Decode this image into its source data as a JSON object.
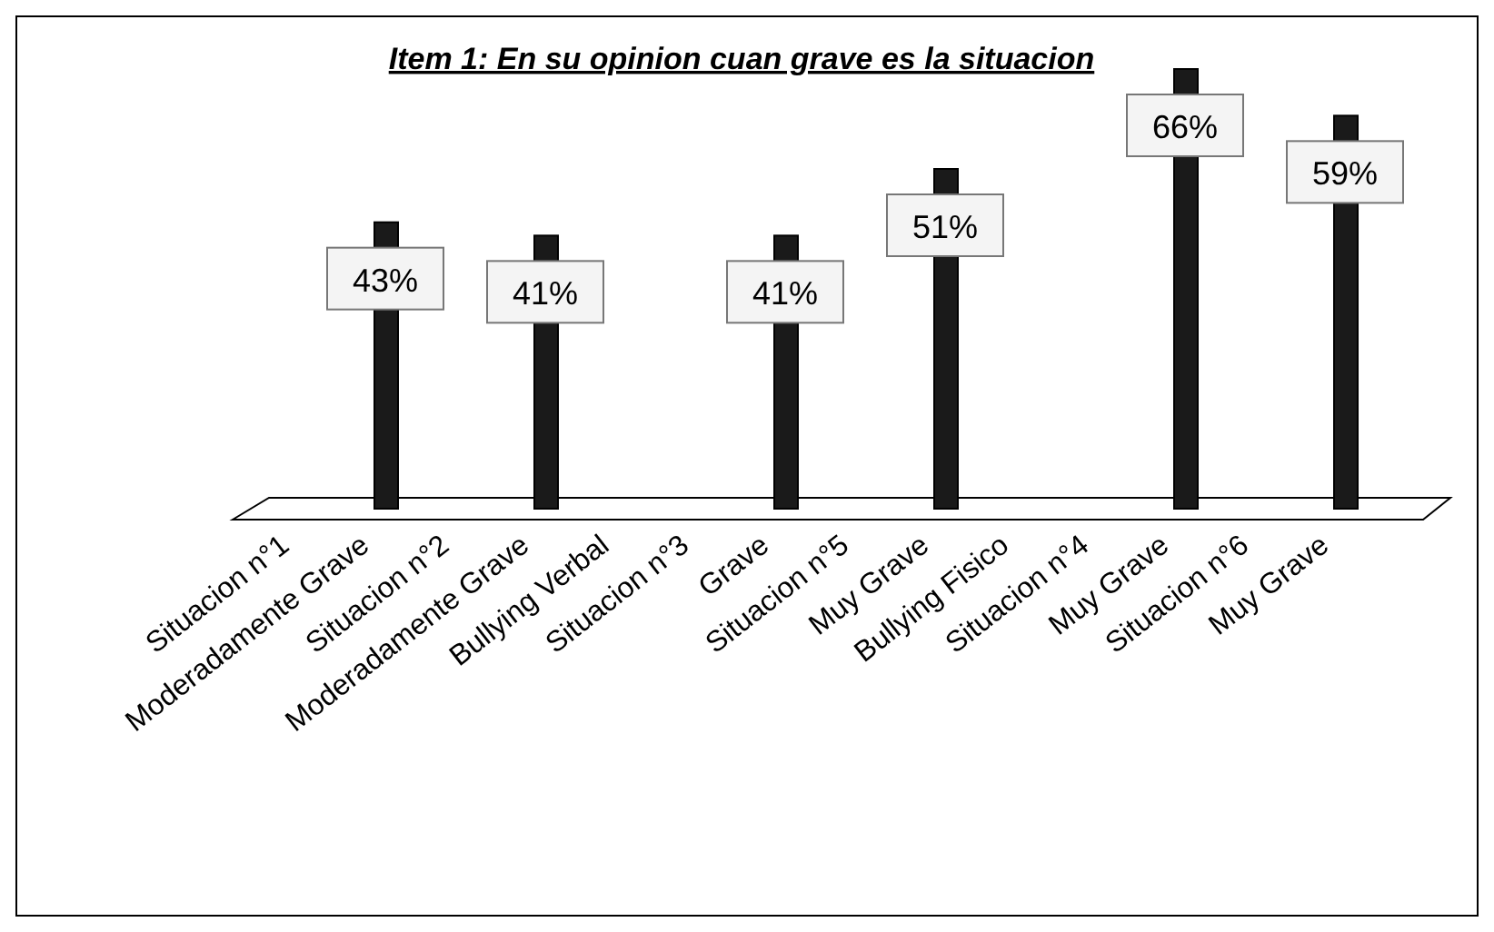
{
  "chart_data": {
    "type": "bar",
    "title": "Item 1: En su opinion cuan grave es la situacion",
    "categories": [
      "Situacion n°1",
      "Moderadamente Grave",
      "Situacion n°2",
      "Moderadamente Grave",
      "Bullying Verbal",
      "Situacion n°3",
      "Grave",
      "Situacion n°5",
      "Muy Grave",
      "Bullying Fisico",
      "Situacion n°4",
      "Muy Grave",
      "Situacion n°6",
      "Muy Grave"
    ],
    "values": [
      null,
      43,
      null,
      41,
      null,
      null,
      41,
      null,
      51,
      null,
      null,
      66,
      null,
      59
    ],
    "value_labels": [
      null,
      "43%",
      null,
      "41%",
      null,
      null,
      "41%",
      null,
      "51%",
      null,
      null,
      "66%",
      null,
      "59%"
    ],
    "color": "#1a1a1a"
  }
}
